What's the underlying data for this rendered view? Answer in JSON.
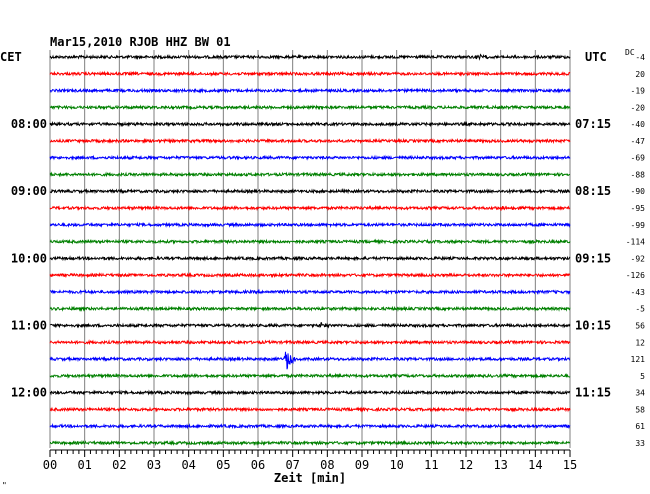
{
  "chart_data": {
    "type": "line",
    "title": "Mar15,2010  RJOB HHZ BW 01",
    "left_axis_label": "CET",
    "right_axis_label": "UTC",
    "dc_label": "DC",
    "xlabel": "Zeit [min]",
    "xlim": [
      0,
      15
    ],
    "x_ticks": [
      "00",
      "01",
      "02",
      "03",
      "04",
      "05",
      "06",
      "07",
      "08",
      "09",
      "10",
      "11",
      "12",
      "13",
      "14",
      "15"
    ],
    "cet_hours": [
      {
        "row": 4,
        "label": "08:00"
      },
      {
        "row": 8,
        "label": "09:00"
      },
      {
        "row": 12,
        "label": "10:00"
      },
      {
        "row": 16,
        "label": "11:00"
      },
      {
        "row": 20,
        "label": "12:00"
      }
    ],
    "utc_hours": [
      {
        "row": 4,
        "label": "07:15"
      },
      {
        "row": 8,
        "label": "08:15"
      },
      {
        "row": 12,
        "label": "09:15"
      },
      {
        "row": 16,
        "label": "10:15"
      },
      {
        "row": 20,
        "label": "11:15"
      }
    ],
    "dc_offsets": [
      "-4",
      "20",
      "-19",
      "-20",
      "-40",
      "-47",
      "-69",
      "-88",
      "-90",
      "-95",
      "-99",
      "-114",
      "-92",
      "-126",
      "-43",
      "-5",
      "56",
      "12",
      "121",
      "5",
      "34",
      "58",
      "61",
      "33"
    ],
    "trace_colors": [
      "#000000",
      "#ff0000",
      "#0000ff",
      "#008000"
    ],
    "events": [
      {
        "row": 18,
        "minute": 6.8,
        "amplitude": 12
      },
      {
        "row": 16,
        "minute": 7.8,
        "amplitude": 3
      },
      {
        "row": 0,
        "minute": 12.3,
        "amplitude": 3
      },
      {
        "row": 9,
        "minute": 13.0,
        "amplitude": 3
      }
    ],
    "footer_mark": "\""
  }
}
